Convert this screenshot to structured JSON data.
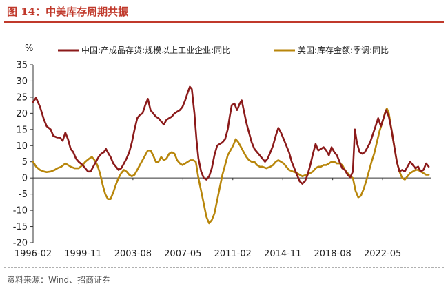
{
  "figure": {
    "title": "图 14：中美库存周期共振",
    "source": "资料来源：Wind、招商证券"
  },
  "chart_data": {
    "type": "line",
    "title": "图 14：中美库存周期共振",
    "ylabel": "%",
    "xlabel": "",
    "ylim": [
      -20,
      35
    ],
    "yticks": [
      35,
      30,
      25,
      20,
      15,
      10,
      5,
      0,
      -5,
      -10,
      -15,
      -20
    ],
    "xlim": [
      1996.08,
      2026.0
    ],
    "xticks": [
      {
        "label": "1996-02",
        "t": 1996.08
      },
      {
        "label": "1999-11",
        "t": 1999.83
      },
      {
        "label": "2003-08",
        "t": 2003.58
      },
      {
        "label": "2007-05",
        "t": 2007.33
      },
      {
        "label": "2011-02",
        "t": 2011.08
      },
      {
        "label": "2014-11",
        "t": 2014.83
      },
      {
        "label": "2018-08",
        "t": 2018.58
      },
      {
        "label": "2022-05",
        "t": 2022.33
      }
    ],
    "grid": false,
    "legend_position": "top",
    "series": [
      {
        "name": "中国:产成品存货:规模以上工业企业:同比",
        "color": "#8b1a1a",
        "points": [
          [
            1996.08,
            23.5
          ],
          [
            1996.3,
            24.8
          ],
          [
            1996.6,
            22
          ],
          [
            1996.9,
            18
          ],
          [
            1997.1,
            16
          ],
          [
            1997.4,
            15
          ],
          [
            1997.6,
            13
          ],
          [
            1997.9,
            12.5
          ],
          [
            1998.1,
            12.5
          ],
          [
            1998.3,
            11.5
          ],
          [
            1998.5,
            14
          ],
          [
            1998.7,
            12
          ],
          [
            1998.9,
            9
          ],
          [
            1999.1,
            8
          ],
          [
            1999.3,
            6
          ],
          [
            1999.5,
            5
          ],
          [
            1999.8,
            4
          ],
          [
            2000.0,
            3
          ],
          [
            2000.2,
            2
          ],
          [
            2000.4,
            2
          ],
          [
            2000.6,
            3.5
          ],
          [
            2000.8,
            5
          ],
          [
            2001.0,
            6.5
          ],
          [
            2001.2,
            7.5
          ],
          [
            2001.4,
            8
          ],
          [
            2001.55,
            9
          ],
          [
            2001.75,
            7.5
          ],
          [
            2001.9,
            6.5
          ],
          [
            2002.1,
            4.5
          ],
          [
            2002.3,
            3.5
          ],
          [
            2002.5,
            2.5
          ],
          [
            2002.7,
            3
          ],
          [
            2002.9,
            4.5
          ],
          [
            2003.1,
            6
          ],
          [
            2003.3,
            8
          ],
          [
            2003.5,
            11
          ],
          [
            2003.7,
            15
          ],
          [
            2003.9,
            18.5
          ],
          [
            2004.1,
            19.5
          ],
          [
            2004.3,
            20
          ],
          [
            2004.5,
            22.5
          ],
          [
            2004.7,
            24.5
          ],
          [
            2004.9,
            21
          ],
          [
            2005.1,
            20
          ],
          [
            2005.3,
            19
          ],
          [
            2005.5,
            18.5
          ],
          [
            2005.7,
            17.5
          ],
          [
            2005.9,
            16.5
          ],
          [
            2006.1,
            18
          ],
          [
            2006.3,
            18.5
          ],
          [
            2006.5,
            19
          ],
          [
            2006.7,
            20
          ],
          [
            2006.9,
            20.5
          ],
          [
            2007.1,
            21
          ],
          [
            2007.3,
            22
          ],
          [
            2007.5,
            24
          ],
          [
            2007.7,
            26.5
          ],
          [
            2007.85,
            28.2
          ],
          [
            2008.0,
            27.5
          ],
          [
            2008.2,
            20
          ],
          [
            2008.35,
            12
          ],
          [
            2008.5,
            6
          ],
          [
            2008.7,
            2
          ],
          [
            2008.9,
            0
          ],
          [
            2009.1,
            -0.5
          ],
          [
            2009.3,
            0.5
          ],
          [
            2009.5,
            3
          ],
          [
            2009.7,
            7
          ],
          [
            2009.9,
            10
          ],
          [
            2010.1,
            10.5
          ],
          [
            2010.3,
            11
          ],
          [
            2010.5,
            12
          ],
          [
            2010.7,
            15
          ],
          [
            2010.85,
            19
          ],
          [
            2011.0,
            22.5
          ],
          [
            2011.2,
            23
          ],
          [
            2011.4,
            21
          ],
          [
            2011.6,
            23
          ],
          [
            2011.75,
            24
          ],
          [
            2011.9,
            21
          ],
          [
            2012.1,
            17
          ],
          [
            2012.3,
            14
          ],
          [
            2012.5,
            11
          ],
          [
            2012.7,
            9
          ],
          [
            2012.9,
            8
          ],
          [
            2013.1,
            7
          ],
          [
            2013.3,
            6
          ],
          [
            2013.5,
            5
          ],
          [
            2013.7,
            6
          ],
          [
            2013.9,
            8
          ],
          [
            2014.1,
            10
          ],
          [
            2014.3,
            13
          ],
          [
            2014.5,
            15.5
          ],
          [
            2014.7,
            14
          ],
          [
            2014.9,
            12
          ],
          [
            2015.1,
            10
          ],
          [
            2015.3,
            8
          ],
          [
            2015.5,
            5
          ],
          [
            2015.7,
            3
          ],
          [
            2015.9,
            1
          ],
          [
            2016.1,
            -1
          ],
          [
            2016.3,
            -1.8
          ],
          [
            2016.5,
            -1
          ],
          [
            2016.7,
            1
          ],
          [
            2016.9,
            4
          ],
          [
            2017.1,
            7.5
          ],
          [
            2017.3,
            10.5
          ],
          [
            2017.5,
            8.5
          ],
          [
            2017.7,
            9
          ],
          [
            2017.9,
            9.5
          ],
          [
            2018.1,
            8.5
          ],
          [
            2018.3,
            7
          ],
          [
            2018.5,
            9.5
          ],
          [
            2018.7,
            8
          ],
          [
            2018.9,
            7
          ],
          [
            2019.1,
            5
          ],
          [
            2019.3,
            3
          ],
          [
            2019.5,
            2.5
          ],
          [
            2019.7,
            1
          ],
          [
            2019.9,
            0.2
          ],
          [
            2020.1,
            2
          ],
          [
            2020.25,
            15
          ],
          [
            2020.4,
            11
          ],
          [
            2020.6,
            8
          ],
          [
            2020.8,
            7.5
          ],
          [
            2021.0,
            8
          ],
          [
            2021.2,
            9.5
          ],
          [
            2021.4,
            11
          ],
          [
            2021.6,
            13.5
          ],
          [
            2021.8,
            16
          ],
          [
            2022.0,
            18.5
          ],
          [
            2022.2,
            16
          ],
          [
            2022.4,
            18.5
          ],
          [
            2022.6,
            21
          ],
          [
            2022.8,
            19
          ],
          [
            2023.0,
            15
          ],
          [
            2023.2,
            10
          ],
          [
            2023.4,
            5
          ],
          [
            2023.6,
            2
          ],
          [
            2023.8,
            2.5
          ],
          [
            2024.0,
            2
          ],
          [
            2024.2,
            3.5
          ],
          [
            2024.4,
            5
          ],
          [
            2024.6,
            4
          ],
          [
            2024.8,
            3
          ],
          [
            2025.0,
            3.5
          ],
          [
            2025.2,
            2
          ],
          [
            2025.4,
            2.5
          ],
          [
            2025.6,
            4.5
          ],
          [
            2025.8,
            3.5
          ]
        ]
      },
      {
        "name": "美国:库存金额:季调:同比",
        "color": "#b8860b",
        "points": [
          [
            1996.08,
            5
          ],
          [
            1996.3,
            3.5
          ],
          [
            1996.6,
            2.5
          ],
          [
            1996.9,
            2
          ],
          [
            1997.1,
            1.8
          ],
          [
            1997.4,
            2
          ],
          [
            1997.7,
            2.5
          ],
          [
            1997.9,
            3
          ],
          [
            1998.2,
            3.5
          ],
          [
            1998.5,
            4.5
          ],
          [
            1998.7,
            4
          ],
          [
            1998.9,
            3.5
          ],
          [
            1999.2,
            3
          ],
          [
            1999.5,
            3
          ],
          [
            1999.8,
            4
          ],
          [
            2000.0,
            5
          ],
          [
            2000.3,
            6
          ],
          [
            2000.5,
            6.5
          ],
          [
            2000.7,
            5.5
          ],
          [
            2000.9,
            4
          ],
          [
            2001.1,
            1.5
          ],
          [
            2001.3,
            -2
          ],
          [
            2001.5,
            -5
          ],
          [
            2001.7,
            -6.5
          ],
          [
            2001.9,
            -6.5
          ],
          [
            2002.1,
            -4.5
          ],
          [
            2002.3,
            -2
          ],
          [
            2002.5,
            0
          ],
          [
            2002.7,
            1.5
          ],
          [
            2002.9,
            2.5
          ],
          [
            2003.1,
            2
          ],
          [
            2003.3,
            1
          ],
          [
            2003.5,
            0.5
          ],
          [
            2003.7,
            1
          ],
          [
            2003.9,
            2.5
          ],
          [
            2004.1,
            4
          ],
          [
            2004.3,
            5.5
          ],
          [
            2004.5,
            7
          ],
          [
            2004.7,
            8.5
          ],
          [
            2004.9,
            8.5
          ],
          [
            2005.1,
            7
          ],
          [
            2005.3,
            5
          ],
          [
            2005.5,
            5
          ],
          [
            2005.7,
            6.5
          ],
          [
            2005.9,
            5.5
          ],
          [
            2006.1,
            6
          ],
          [
            2006.3,
            7.5
          ],
          [
            2006.5,
            8
          ],
          [
            2006.7,
            7.5
          ],
          [
            2006.9,
            5.5
          ],
          [
            2007.1,
            4.5
          ],
          [
            2007.3,
            4
          ],
          [
            2007.5,
            4.5
          ],
          [
            2007.7,
            5
          ],
          [
            2007.9,
            5.5
          ],
          [
            2008.1,
            5.5
          ],
          [
            2008.3,
            5
          ],
          [
            2008.5,
            0
          ],
          [
            2008.7,
            -4
          ],
          [
            2008.9,
            -8
          ],
          [
            2009.1,
            -12
          ],
          [
            2009.3,
            -14
          ],
          [
            2009.5,
            -13
          ],
          [
            2009.7,
            -11
          ],
          [
            2009.9,
            -7
          ],
          [
            2010.1,
            -3
          ],
          [
            2010.3,
            1
          ],
          [
            2010.5,
            4
          ],
          [
            2010.7,
            7
          ],
          [
            2010.9,
            8.5
          ],
          [
            2011.1,
            10
          ],
          [
            2011.3,
            12
          ],
          [
            2011.5,
            11
          ],
          [
            2011.7,
            9.5
          ],
          [
            2011.9,
            8
          ],
          [
            2012.1,
            6.5
          ],
          [
            2012.3,
            5.5
          ],
          [
            2012.5,
            5
          ],
          [
            2012.7,
            5
          ],
          [
            2012.9,
            4
          ],
          [
            2013.1,
            3.5
          ],
          [
            2013.3,
            3.5
          ],
          [
            2013.6,
            3
          ],
          [
            2013.9,
            3.5
          ],
          [
            2014.1,
            4
          ],
          [
            2014.3,
            5
          ],
          [
            2014.5,
            5.5
          ],
          [
            2014.7,
            5
          ],
          [
            2014.9,
            4.5
          ],
          [
            2015.1,
            3.5
          ],
          [
            2015.3,
            2.5
          ],
          [
            2015.6,
            2
          ],
          [
            2015.9,
            1.5
          ],
          [
            2016.1,
            1
          ],
          [
            2016.3,
            0.5
          ],
          [
            2016.6,
            1
          ],
          [
            2016.9,
            1.5
          ],
          [
            2017.1,
            2
          ],
          [
            2017.3,
            3
          ],
          [
            2017.5,
            3.5
          ],
          [
            2017.7,
            3.5
          ],
          [
            2017.9,
            4
          ],
          [
            2018.1,
            4
          ],
          [
            2018.3,
            4.5
          ],
          [
            2018.5,
            5
          ],
          [
            2018.7,
            5
          ],
          [
            2018.9,
            4.5
          ],
          [
            2019.1,
            4.5
          ],
          [
            2019.3,
            4
          ],
          [
            2019.5,
            2.5
          ],
          [
            2019.7,
            1.5
          ],
          [
            2019.9,
            0.5
          ],
          [
            2020.1,
            0
          ],
          [
            2020.3,
            -4
          ],
          [
            2020.5,
            -6
          ],
          [
            2020.7,
            -5.5
          ],
          [
            2020.9,
            -3.5
          ],
          [
            2021.1,
            -1
          ],
          [
            2021.3,
            2
          ],
          [
            2021.5,
            5
          ],
          [
            2021.7,
            7.5
          ],
          [
            2021.9,
            11
          ],
          [
            2022.1,
            14.5
          ],
          [
            2022.3,
            17
          ],
          [
            2022.5,
            20
          ],
          [
            2022.65,
            21.5
          ],
          [
            2022.8,
            20
          ],
          [
            2023.0,
            15
          ],
          [
            2023.2,
            10
          ],
          [
            2023.4,
            5
          ],
          [
            2023.6,
            2
          ],
          [
            2023.8,
            0
          ],
          [
            2024.0,
            -0.5
          ],
          [
            2024.2,
            0.5
          ],
          [
            2024.4,
            1.5
          ],
          [
            2024.6,
            2
          ],
          [
            2024.8,
            2.5
          ],
          [
            2025.0,
            2.5
          ],
          [
            2025.2,
            2
          ],
          [
            2025.4,
            1.5
          ],
          [
            2025.6,
            1
          ],
          [
            2025.8,
            1
          ]
        ]
      }
    ]
  }
}
